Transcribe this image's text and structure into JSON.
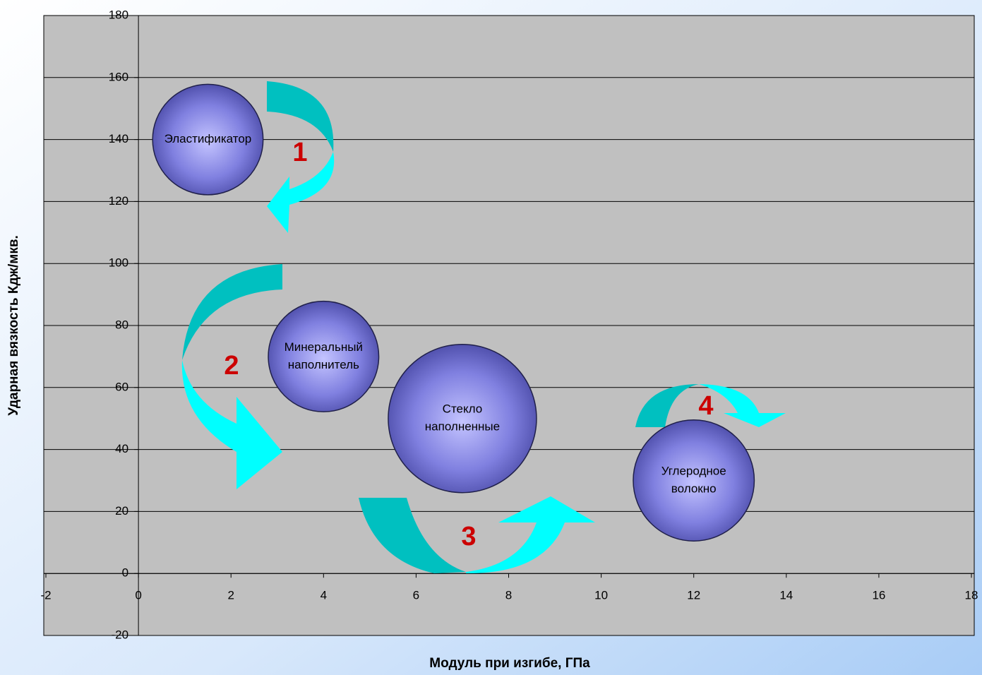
{
  "chart_data": {
    "type": "bubble",
    "x_label": "Модуль при изгибе, ГПа",
    "y_label": "Ударная вязкость Кдж/мкв.",
    "x": [
      1.5,
      4,
      7,
      12
    ],
    "y": [
      140,
      70,
      50,
      30
    ],
    "sizes": [
      10,
      10,
      18,
      12
    ],
    "labels": [
      [
        "Эластификатор"
      ],
      [
        "Минеральный",
        "наполнитель"
      ],
      [
        "Стекло",
        "наполненные"
      ],
      [
        "Углеродное",
        "волокно"
      ]
    ],
    "annotations": [
      "1",
      "2",
      "3",
      "4"
    ],
    "xlim": [
      -2,
      18
    ],
    "xticks": [
      -2,
      0,
      2,
      4,
      6,
      8,
      10,
      12,
      14,
      16,
      18
    ],
    "ylim": [
      -20,
      180
    ],
    "yticks": [
      -20,
      0,
      20,
      40,
      60,
      80,
      100,
      120,
      140,
      160,
      180
    ],
    "grid": "y",
    "plot_color": "#c0c0c0"
  }
}
